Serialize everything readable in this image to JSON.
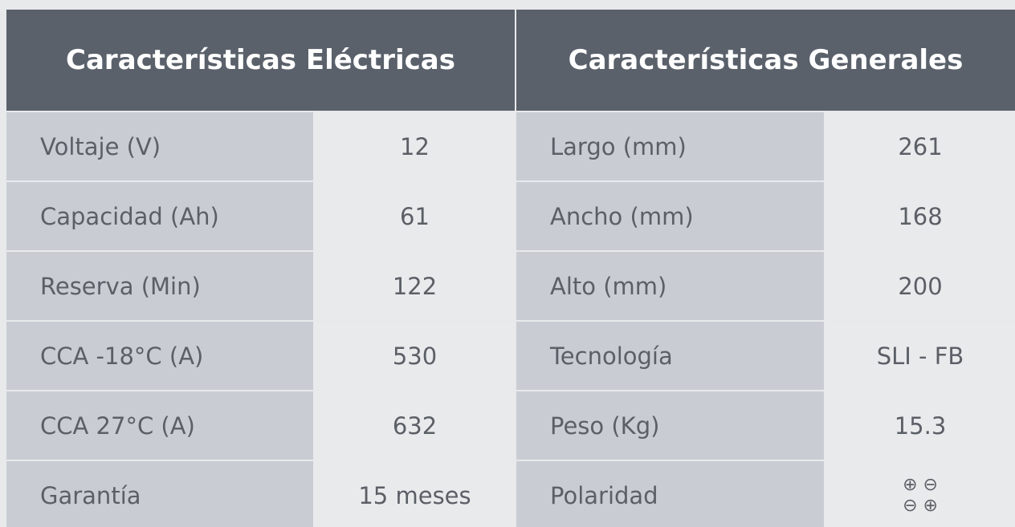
{
  "tables": [
    {
      "title": "Características Eléctricas",
      "rows": [
        [
          "Voltaje (V)",
          "12"
        ],
        [
          "Capacidad (Ah)",
          "61"
        ],
        [
          "Reserva (Min)",
          "122"
        ],
        [
          "CCA -18°C (A)",
          "530"
        ],
        [
          "CCA 27°C (A)",
          "632"
        ],
        [
          "Garantía",
          "15 meses"
        ]
      ]
    },
    {
      "title": "Características Generales",
      "rows": [
        [
          "Largo (mm)",
          "261"
        ],
        [
          "Ancho (mm)",
          "168"
        ],
        [
          "Alto (mm)",
          "200"
        ],
        [
          "Tecnología",
          "SLI - FB"
        ],
        [
          "Peso (Kg)",
          "15.3"
        ],
        [
          "Polaridad",
          [
            "⊕ ⊖",
            "⊖ ⊕"
          ]
        ]
      ]
    }
  ]
}
